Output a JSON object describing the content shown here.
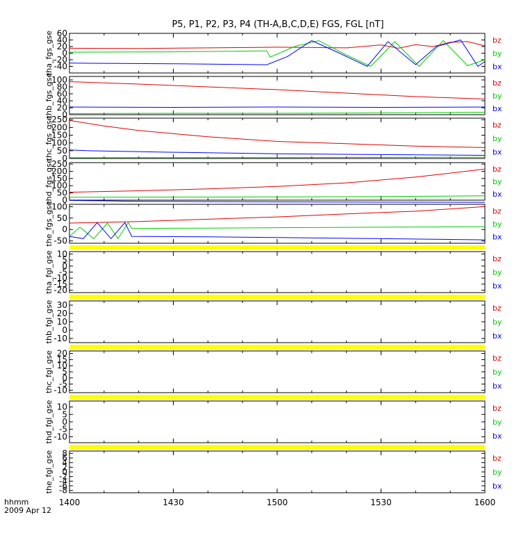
{
  "chart_data": {
    "type": "line",
    "title": "P5, P1, P2, P3, P4 (TH-A,B,C,D,E) FGS, FGL [nT]",
    "time_label": "hhmm",
    "date_label": "2009 Apr 12",
    "x_ticks": [
      "1400",
      "1430",
      "1500",
      "1530",
      "1600"
    ],
    "x_range": [
      0,
      120
    ],
    "colors": {
      "bx": "#0000ff",
      "by": "#00cc00",
      "bz": "#e00000",
      "flag": "#ffff00"
    },
    "panels": [
      {
        "ylabel": "tha_fgs_gse",
        "ylim": [
          -60,
          60
        ],
        "yticks": [
          "-40",
          "-20",
          "0",
          "20",
          "40",
          "60"
        ],
        "series_names": [
          "bz",
          "by",
          "bx"
        ],
        "series": [
          {
            "name": "bz",
            "x": [
              0,
              20,
              40,
              60,
              80,
              90,
              95,
              100,
              105,
              110,
              115,
              120
            ],
            "y": [
              15,
              14,
              16,
              18,
              16,
              25,
              15,
              26,
              20,
              33,
              35,
              22
            ]
          },
          {
            "name": "by",
            "x": [
              0,
              30,
              57,
              58,
              65,
              72,
              80,
              87,
              94,
              101,
              108,
              115,
              120
            ],
            "y": [
              3,
              4,
              7,
              -12,
              20,
              38,
              -5,
              -40,
              35,
              -40,
              38,
              -38,
              -20
            ]
          },
          {
            "name": "bx",
            "x": [
              0,
              30,
              57,
              63,
              70,
              78,
              86,
              92,
              100,
              106,
              113,
              118,
              120
            ],
            "y": [
              -30,
              -32,
              -35,
              -10,
              38,
              0,
              -40,
              35,
              -35,
              20,
              40,
              -40,
              -25
            ]
          }
        ]
      },
      {
        "ylabel": "thb_fgs_gse",
        "ylim": [
          0,
          110
        ],
        "yticks": [
          "0",
          "20",
          "40",
          "60",
          "80",
          "100"
        ],
        "series_names": [
          "bz",
          "by",
          "bx"
        ],
        "series": [
          {
            "name": "bz",
            "x": [
              0,
              20,
              40,
              60,
              80,
              100,
              120
            ],
            "y": [
              95,
              88,
              80,
              72,
              62,
              52,
              45
            ]
          },
          {
            "name": "by",
            "x": [
              0,
              30,
              60,
              90,
              120
            ],
            "y": [
              3,
              4,
              4,
              5,
              7
            ]
          },
          {
            "name": "bx",
            "x": [
              0,
              30,
              60,
              90,
              120
            ],
            "y": [
              22,
              21,
              22,
              21,
              22
            ]
          }
        ]
      },
      {
        "ylabel": "thc_fgs_gse",
        "ylim": [
          0,
          260
        ],
        "yticks": [
          "0",
          "50",
          "100",
          "150",
          "200",
          "250"
        ],
        "series_names": [
          "bz",
          "by",
          "bx"
        ],
        "series": [
          {
            "name": "bz",
            "x": [
              0,
              10,
              20,
              40,
              60,
              80,
              100,
              120
            ],
            "y": [
              245,
              210,
              180,
              140,
              110,
              95,
              80,
              70
            ]
          },
          {
            "name": "by",
            "x": [
              0,
              30,
              60,
              90,
              120
            ],
            "y": [
              5,
              6,
              6,
              7,
              8
            ]
          },
          {
            "name": "bx",
            "x": [
              0,
              5,
              30,
              60,
              90,
              120
            ],
            "y": [
              55,
              50,
              40,
              30,
              25,
              20
            ]
          }
        ]
      },
      {
        "ylabel": "thd_fgs_gse",
        "ylim": [
          0,
          260
        ],
        "yticks": [
          "0",
          "50",
          "100",
          "150",
          "200",
          "250"
        ],
        "series_names": [
          "bz",
          "by",
          "bx"
        ],
        "series": [
          {
            "name": "bz",
            "x": [
              0,
              20,
              40,
              60,
              80,
              100,
              120
            ],
            "y": [
              55,
              65,
              78,
              95,
              120,
              160,
              215
            ]
          },
          {
            "name": "by",
            "x": [
              0,
              30,
              60,
              90,
              120
            ],
            "y": [
              20,
              21,
              22,
              25,
              30
            ]
          },
          {
            "name": "bx",
            "x": [
              0,
              10,
              20,
              40,
              60,
              90,
              120
            ],
            "y": [
              -2,
              -5,
              -8,
              -10,
              -12,
              -14,
              -15
            ]
          }
        ]
      },
      {
        "ylabel": "the_fgs_gse",
        "ylim": [
          -60,
          110
        ],
        "yticks": [
          "-50",
          "0",
          "50",
          "100"
        ],
        "series_names": [
          "bz",
          "by",
          "bx"
        ],
        "series": [
          {
            "name": "bz",
            "x": [
              0,
              20,
              40,
              60,
              80,
              100,
              120
            ],
            "y": [
              28,
              35,
              45,
              55,
              68,
              80,
              100
            ]
          },
          {
            "name": "by",
            "x": [
              0,
              3,
              7,
              11,
              14,
              17,
              18,
              19,
              40,
              60,
              90,
              120
            ],
            "y": [
              -30,
              10,
              -40,
              28,
              -40,
              30,
              5,
              5,
              6,
              8,
              10,
              12
            ]
          },
          {
            "name": "bx",
            "x": [
              0,
              4,
              8,
              12,
              16,
              17,
              18,
              40,
              60,
              90,
              120
            ],
            "y": [
              -30,
              -40,
              30,
              -40,
              30,
              0,
              -30,
              -32,
              -35,
              -40,
              -45
            ]
          }
        ]
      },
      {
        "ylabel": "tha_fgl_gse",
        "ylim": [
          -22,
          12
        ],
        "yticks": [
          "-20",
          "-15",
          "-10",
          "-5",
          "0",
          "5",
          "10"
        ],
        "series_names": [
          "bz",
          "by",
          "bx"
        ],
        "series": []
      },
      {
        "ylabel": "thb_fgl_gse",
        "ylim": [
          -15,
          35
        ],
        "yticks": [
          "-10",
          "0",
          "10",
          "20",
          "30"
        ],
        "series_names": [
          "bz",
          "by",
          "bx"
        ],
        "series": []
      },
      {
        "ylabel": "thc_fgl_gse",
        "ylim": [
          -12,
          22
        ],
        "yticks": [
          "-10",
          "-5",
          "0",
          "5",
          "10",
          "15",
          "20"
        ],
        "series_names": [
          "bz",
          "by",
          "bx"
        ],
        "series": []
      },
      {
        "ylabel": "thd_fgl_gse",
        "ylim": [
          -14,
          14
        ],
        "yticks": [
          "-10",
          "-5",
          "0",
          "5",
          "10"
        ],
        "series_names": [
          "bz",
          "by",
          "bx"
        ],
        "series": []
      },
      {
        "ylabel": "the_fgl_gse",
        "ylim": [
          -9,
          9
        ],
        "yticks": [
          "-8",
          "-6",
          "-4",
          "-2",
          "0",
          "2",
          "4",
          "6",
          "8"
        ],
        "series_names": [
          "bz",
          "by",
          "bx"
        ],
        "series": []
      }
    ]
  }
}
